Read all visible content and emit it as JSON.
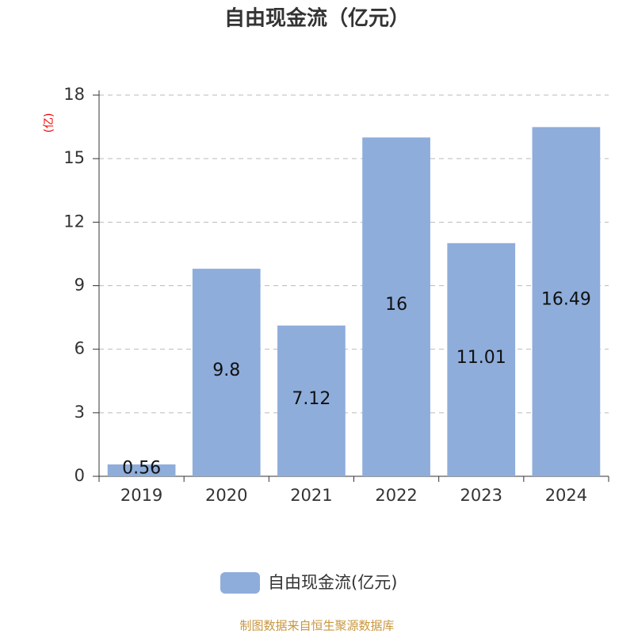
{
  "chart_data": {
    "type": "bar",
    "title": "自由现金流（亿元）",
    "y_axis_label": "(亿)",
    "categories": [
      "2019",
      "2020",
      "2021",
      "2022",
      "2023",
      "2024"
    ],
    "series": [
      {
        "name": "自由现金流(亿元)",
        "color": "#8eaddb",
        "values": [
          0.56,
          9.8,
          7.12,
          16,
          11.01,
          16.49
        ]
      }
    ],
    "ylim": [
      0,
      18
    ],
    "yticks": [
      0,
      3,
      6,
      9,
      12,
      15,
      18
    ],
    "grid": true,
    "source": "制图数据来自恒生聚源数据库"
  }
}
